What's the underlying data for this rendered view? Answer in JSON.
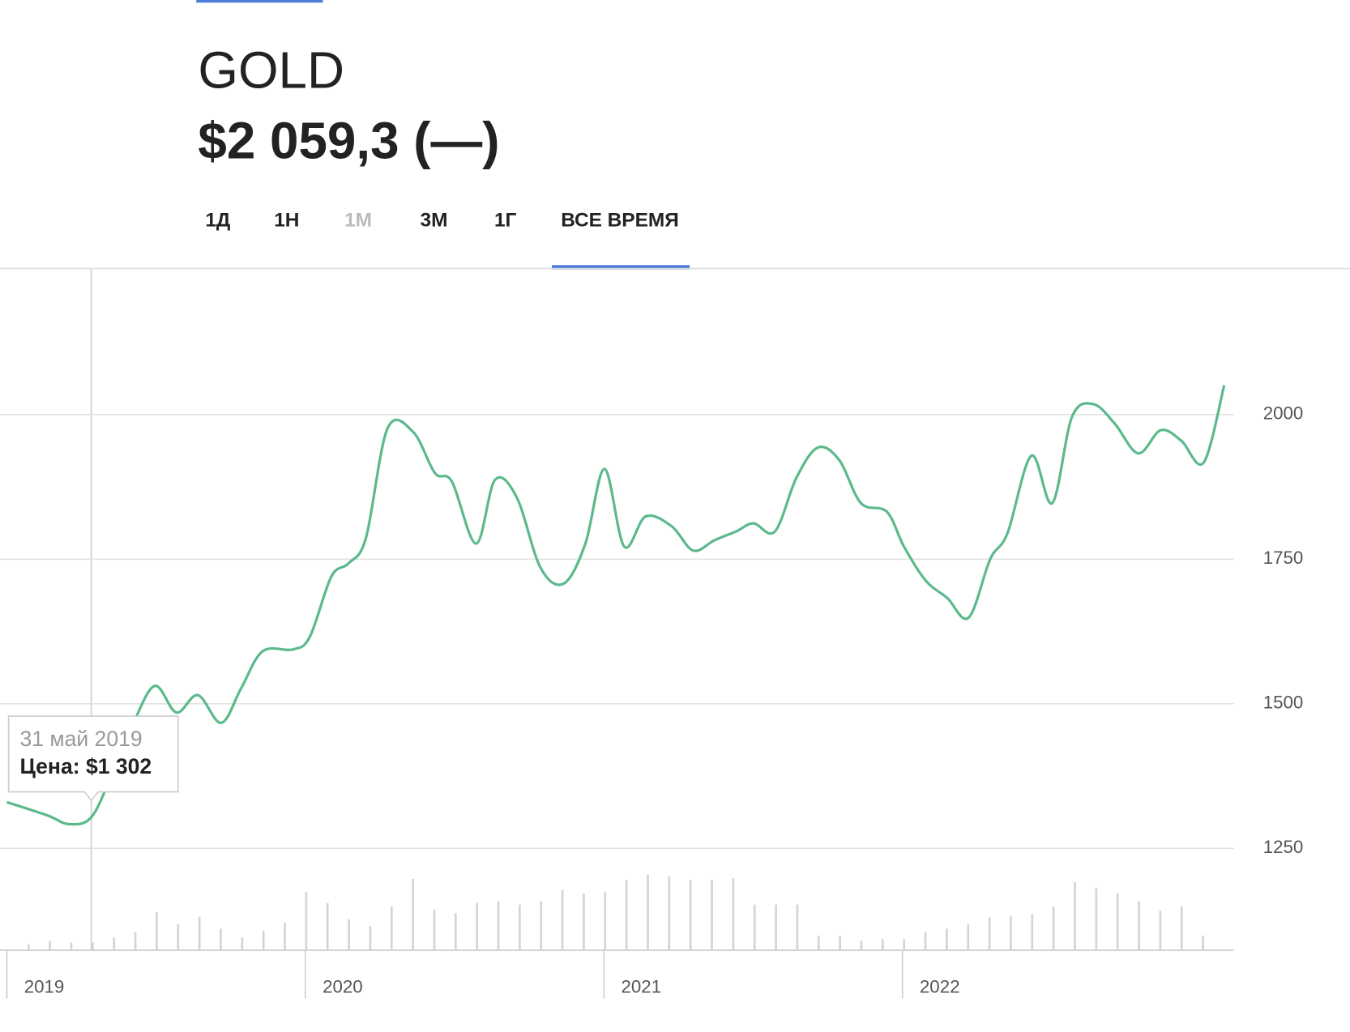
{
  "header": {
    "title": "GOLD",
    "price": "$2 059,3 (—)"
  },
  "tabs": [
    "1Д",
    "1Н",
    "1М",
    "3М",
    "1Г",
    "ВСЕ ВРЕМЯ"
  ],
  "tooltip": {
    "date": "31 май 2019",
    "label": "Цена:",
    "value": "$1 302"
  },
  "chart_data": [
    {
      "type": "line",
      "name": "GOLD",
      "color": "#5bb98b",
      "x": [
        2019.0,
        2019.136,
        2019.208,
        2019.283,
        2019.352,
        2019.424,
        2019.496,
        2019.568,
        2019.64,
        2019.718,
        2019.785,
        2019.857,
        2019.958,
        2020.015,
        2020.087,
        2020.145,
        2020.203,
        2020.275,
        2020.361,
        2020.434,
        2020.491,
        2020.572,
        2020.635,
        2020.708,
        2020.788,
        2020.866,
        2020.938,
        2021.002,
        2021.068,
        2021.14,
        2021.227,
        2021.299,
        2021.371,
        2021.443,
        2021.501,
        2021.573,
        2021.645,
        2021.717,
        2021.789,
        2021.861,
        2021.948,
        2022.005,
        2022.078,
        2022.15,
        2022.222,
        2022.294,
        2022.352,
        2022.432,
        2022.502,
        2022.568,
        2022.64,
        2022.712,
        2022.79,
        2022.865,
        2022.934,
        2023.009,
        2023.078
      ],
      "values": [
        1330,
        1307,
        1292,
        1304,
        1378,
        1467,
        1531,
        1485,
        1515,
        1467,
        1527,
        1591,
        1594,
        1616,
        1720,
        1743,
        1787,
        1976,
        1970,
        1899,
        1884,
        1777,
        1887,
        1857,
        1735,
        1708,
        1777,
        1906,
        1772,
        1824,
        1807,
        1765,
        1783,
        1798,
        1812,
        1798,
        1891,
        1943,
        1921,
        1847,
        1832,
        1772,
        1713,
        1683,
        1649,
        1750,
        1795,
        1929,
        1847,
        1996,
        2018,
        1984,
        1933,
        1973,
        1955,
        1917,
        2051
      ],
      "xlim": [
        2018.977,
        2023.11
      ],
      "xticks": [
        2019,
        2020,
        2021,
        2022
      ],
      "ylim": [
        1074,
        2251
      ],
      "yticks": [
        1250,
        1500,
        1750,
        2000
      ],
      "grid": true
    },
    {
      "type": "bar",
      "name": "volume",
      "color": "#d4d4d4",
      "values": [
        7,
        11,
        9,
        9,
        15,
        21,
        44,
        30,
        39,
        25,
        15,
        23,
        32,
        68,
        55,
        36,
        28,
        51,
        83,
        47,
        43,
        55,
        57,
        53,
        57,
        70,
        66,
        68,
        82,
        88,
        86,
        82,
        82,
        84,
        53,
        53,
        53,
        17,
        17,
        11,
        13,
        13,
        21,
        25,
        30,
        38,
        40,
        42,
        51,
        79,
        72,
        66,
        57,
        46,
        51,
        17
      ],
      "ylim": [
        0,
        100
      ]
    }
  ]
}
